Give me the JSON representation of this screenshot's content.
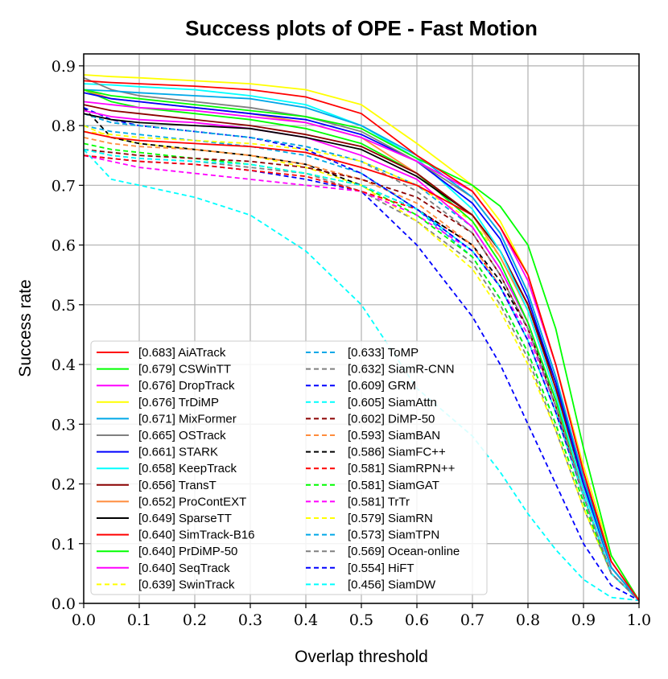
{
  "chart_data": {
    "type": "line",
    "title": "Success plots of OPE - Fast Motion",
    "xlabel": "Overlap threshold",
    "ylabel": "Success rate",
    "xlim": [
      0,
      1
    ],
    "ylim": [
      0,
      0.92
    ],
    "grid": true,
    "legend_position": "lower-left",
    "x_ticks": [
      "0.0",
      "0.1",
      "0.2",
      "0.3",
      "0.4",
      "0.5",
      "0.6",
      "0.7",
      "0.8",
      "0.9",
      "1.0"
    ],
    "y_ticks": [
      "0.0",
      "0.1",
      "0.2",
      "0.3",
      "0.4",
      "0.5",
      "0.6",
      "0.7",
      "0.8",
      "0.9"
    ],
    "x": [
      0,
      0.05,
      0.1,
      0.2,
      0.3,
      0.4,
      0.5,
      0.6,
      0.7,
      0.75,
      0.8,
      0.85,
      0.9,
      0.95,
      1.0
    ],
    "series": [
      {
        "name": "AiATrack",
        "score": "[0.683]",
        "color": "#ff0000",
        "style": "solid",
        "values": [
          0.875,
          0.872,
          0.87,
          0.866,
          0.86,
          0.848,
          0.82,
          0.75,
          0.69,
          0.63,
          0.55,
          0.4,
          0.22,
          0.07,
          0.005
        ]
      },
      {
        "name": "CSWinTT",
        "score": "[0.679]",
        "color": "#00ff00",
        "style": "solid",
        "values": [
          0.86,
          0.85,
          0.845,
          0.835,
          0.825,
          0.815,
          0.795,
          0.745,
          0.7,
          0.665,
          0.6,
          0.46,
          0.26,
          0.08,
          0.005
        ]
      },
      {
        "name": "DropTrack",
        "score": "[0.676]",
        "color": "#ff00ff",
        "style": "solid",
        "values": [
          0.84,
          0.835,
          0.83,
          0.825,
          0.815,
          0.805,
          0.78,
          0.74,
          0.69,
          0.63,
          0.54,
          0.4,
          0.22,
          0.07,
          0.005
        ]
      },
      {
        "name": "TrDiMP",
        "score": "[0.676]",
        "color": "#ffff00",
        "style": "solid",
        "values": [
          0.885,
          0.882,
          0.88,
          0.875,
          0.87,
          0.86,
          0.835,
          0.77,
          0.7,
          0.64,
          0.55,
          0.4,
          0.23,
          0.08,
          0.005
        ]
      },
      {
        "name": "MixFormer",
        "score": "[0.671]",
        "color": "#00a8e8",
        "style": "solid",
        "values": [
          0.86,
          0.858,
          0.855,
          0.85,
          0.845,
          0.83,
          0.8,
          0.75,
          0.68,
          0.62,
          0.52,
          0.38,
          0.21,
          0.06,
          0.005
        ]
      },
      {
        "name": "OSTrack",
        "score": "[0.665]",
        "color": "#808080",
        "style": "solid",
        "values": [
          0.88,
          0.86,
          0.85,
          0.84,
          0.83,
          0.815,
          0.79,
          0.74,
          0.68,
          0.62,
          0.52,
          0.38,
          0.21,
          0.06,
          0.005
        ]
      },
      {
        "name": "STARK",
        "score": "[0.661]",
        "color": "#0000ff",
        "style": "solid",
        "values": [
          0.855,
          0.845,
          0.84,
          0.83,
          0.82,
          0.81,
          0.785,
          0.74,
          0.67,
          0.61,
          0.51,
          0.37,
          0.2,
          0.06,
          0.005
        ]
      },
      {
        "name": "KeepTrack",
        "score": "[0.658]",
        "color": "#00ffff",
        "style": "solid",
        "values": [
          0.87,
          0.868,
          0.865,
          0.86,
          0.85,
          0.835,
          0.8,
          0.745,
          0.66,
          0.59,
          0.49,
          0.35,
          0.19,
          0.06,
          0.005
        ]
      },
      {
        "name": "TransT",
        "score": "[0.656]",
        "color": "#8b0000",
        "style": "solid",
        "values": [
          0.835,
          0.825,
          0.82,
          0.81,
          0.8,
          0.785,
          0.765,
          0.72,
          0.65,
          0.59,
          0.5,
          0.36,
          0.2,
          0.06,
          0.005
        ]
      },
      {
        "name": "ProContEXT",
        "score": "[0.652]",
        "color": "#ff8c3c",
        "style": "solid",
        "values": [
          0.86,
          0.845,
          0.84,
          0.83,
          0.82,
          0.805,
          0.78,
          0.72,
          0.65,
          0.58,
          0.49,
          0.35,
          0.19,
          0.06,
          0.005
        ]
      },
      {
        "name": "SparseTT",
        "score": "[0.649]",
        "color": "#000000",
        "style": "solid",
        "values": [
          0.82,
          0.81,
          0.805,
          0.8,
          0.795,
          0.78,
          0.76,
          0.715,
          0.65,
          0.59,
          0.5,
          0.37,
          0.21,
          0.07,
          0.005
        ]
      },
      {
        "name": "SimTrack-B16",
        "score": "[0.640]",
        "color": "#ff0000",
        "style": "solid",
        "values": [
          0.79,
          0.78,
          0.775,
          0.77,
          0.765,
          0.755,
          0.73,
          0.7,
          0.65,
          0.59,
          0.5,
          0.36,
          0.2,
          0.06,
          0.005
        ]
      },
      {
        "name": "PrDiMP-50",
        "score": "[0.640]",
        "color": "#00ff00",
        "style": "solid",
        "values": [
          0.86,
          0.84,
          0.83,
          0.82,
          0.81,
          0.795,
          0.77,
          0.72,
          0.64,
          0.57,
          0.47,
          0.34,
          0.19,
          0.06,
          0.005
        ]
      },
      {
        "name": "SeqTrack",
        "score": "[0.640]",
        "color": "#ff00ff",
        "style": "solid",
        "values": [
          0.825,
          0.815,
          0.81,
          0.805,
          0.795,
          0.78,
          0.75,
          0.71,
          0.63,
          0.56,
          0.47,
          0.34,
          0.19,
          0.06,
          0.005
        ]
      },
      {
        "name": "SwinTrack",
        "score": "[0.639]",
        "color": "#ffff00",
        "style": "dashed",
        "values": [
          0.79,
          0.785,
          0.78,
          0.775,
          0.77,
          0.76,
          0.74,
          0.7,
          0.64,
          0.58,
          0.49,
          0.35,
          0.2,
          0.06,
          0.005
        ]
      },
      {
        "name": "ToMP",
        "score": "[0.633]",
        "color": "#00a8e8",
        "style": "dashed",
        "values": [
          0.82,
          0.805,
          0.8,
          0.79,
          0.78,
          0.765,
          0.74,
          0.7,
          0.63,
          0.56,
          0.47,
          0.34,
          0.19,
          0.06,
          0.005
        ]
      },
      {
        "name": "SiamR-CNN",
        "score": "[0.632]",
        "color": "#808080",
        "style": "dashed",
        "values": [
          0.82,
          0.805,
          0.8,
          0.79,
          0.78,
          0.765,
          0.74,
          0.69,
          0.62,
          0.55,
          0.46,
          0.33,
          0.18,
          0.05,
          0.005
        ]
      },
      {
        "name": "GRM",
        "score": "[0.609]",
        "color": "#0000ff",
        "style": "dashed",
        "values": [
          0.83,
          0.81,
          0.8,
          0.79,
          0.78,
          0.76,
          0.72,
          0.66,
          0.59,
          0.53,
          0.44,
          0.32,
          0.18,
          0.05,
          0.005
        ]
      },
      {
        "name": "SiamAttn",
        "score": "[0.605]",
        "color": "#00ffff",
        "style": "dashed",
        "values": [
          0.76,
          0.75,
          0.745,
          0.74,
          0.735,
          0.72,
          0.7,
          0.66,
          0.59,
          0.53,
          0.44,
          0.32,
          0.18,
          0.05,
          0.005
        ]
      },
      {
        "name": "DiMP-50",
        "score": "[0.602]",
        "color": "#8b0000",
        "style": "dashed",
        "values": [
          0.76,
          0.755,
          0.75,
          0.745,
          0.74,
          0.73,
          0.71,
          0.68,
          0.62,
          0.55,
          0.46,
          0.33,
          0.18,
          0.05,
          0.005
        ]
      },
      {
        "name": "SiamBAN",
        "score": "[0.593]",
        "color": "#ff8c3c",
        "style": "dashed",
        "values": [
          0.78,
          0.77,
          0.765,
          0.76,
          0.75,
          0.735,
          0.71,
          0.67,
          0.6,
          0.53,
          0.44,
          0.32,
          0.18,
          0.05,
          0.005
        ]
      },
      {
        "name": "SiamFC++",
        "score": "[0.586]",
        "color": "#000000",
        "style": "dashed",
        "values": [
          0.83,
          0.78,
          0.77,
          0.76,
          0.75,
          0.735,
          0.7,
          0.66,
          0.6,
          0.54,
          0.46,
          0.34,
          0.2,
          0.06,
          0.005
        ]
      },
      {
        "name": "SiamRPN++",
        "score": "[0.581]",
        "color": "#ff0000",
        "style": "dashed",
        "values": [
          0.75,
          0.745,
          0.74,
          0.735,
          0.725,
          0.715,
          0.69,
          0.66,
          0.6,
          0.53,
          0.44,
          0.32,
          0.18,
          0.05,
          0.005
        ]
      },
      {
        "name": "SiamGAT",
        "score": "[0.581]",
        "color": "#00ff00",
        "style": "dashed",
        "values": [
          0.77,
          0.76,
          0.755,
          0.745,
          0.735,
          0.72,
          0.7,
          0.65,
          0.58,
          0.51,
          0.42,
          0.3,
          0.17,
          0.05,
          0.005
        ]
      },
      {
        "name": "TrTr",
        "score": "[0.581]",
        "color": "#ff00ff",
        "style": "dashed",
        "values": [
          0.75,
          0.74,
          0.73,
          0.72,
          0.71,
          0.7,
          0.69,
          0.65,
          0.59,
          0.53,
          0.45,
          0.33,
          0.19,
          0.06,
          0.005
        ]
      },
      {
        "name": "SiamRN",
        "score": "[0.579]",
        "color": "#ffff00",
        "style": "dashed",
        "values": [
          0.8,
          0.78,
          0.77,
          0.76,
          0.75,
          0.73,
          0.7,
          0.64,
          0.56,
          0.49,
          0.4,
          0.29,
          0.16,
          0.05,
          0.005
        ]
      },
      {
        "name": "SiamTPN",
        "score": "[0.573]",
        "color": "#00a8e8",
        "style": "dashed",
        "values": [
          0.8,
          0.79,
          0.785,
          0.775,
          0.765,
          0.75,
          0.72,
          0.66,
          0.58,
          0.51,
          0.42,
          0.3,
          0.17,
          0.05,
          0.005
        ]
      },
      {
        "name": "Ocean-online",
        "score": "[0.569]",
        "color": "#808080",
        "style": "dashed",
        "values": [
          0.76,
          0.75,
          0.745,
          0.74,
          0.73,
          0.72,
          0.69,
          0.64,
          0.57,
          0.5,
          0.41,
          0.29,
          0.16,
          0.05,
          0.005
        ]
      },
      {
        "name": "HiFT",
        "score": "[0.554]",
        "color": "#0000ff",
        "style": "dashed",
        "values": [
          0.75,
          0.745,
          0.74,
          0.735,
          0.725,
          0.71,
          0.69,
          0.6,
          0.48,
          0.4,
          0.3,
          0.2,
          0.1,
          0.03,
          0.005
        ]
      },
      {
        "name": "SiamDW",
        "score": "[0.456]",
        "color": "#00ffff",
        "style": "dashed",
        "values": [
          0.76,
          0.71,
          0.7,
          0.68,
          0.65,
          0.59,
          0.5,
          0.36,
          0.28,
          0.22,
          0.15,
          0.09,
          0.04,
          0.01,
          0.005
        ]
      }
    ]
  }
}
